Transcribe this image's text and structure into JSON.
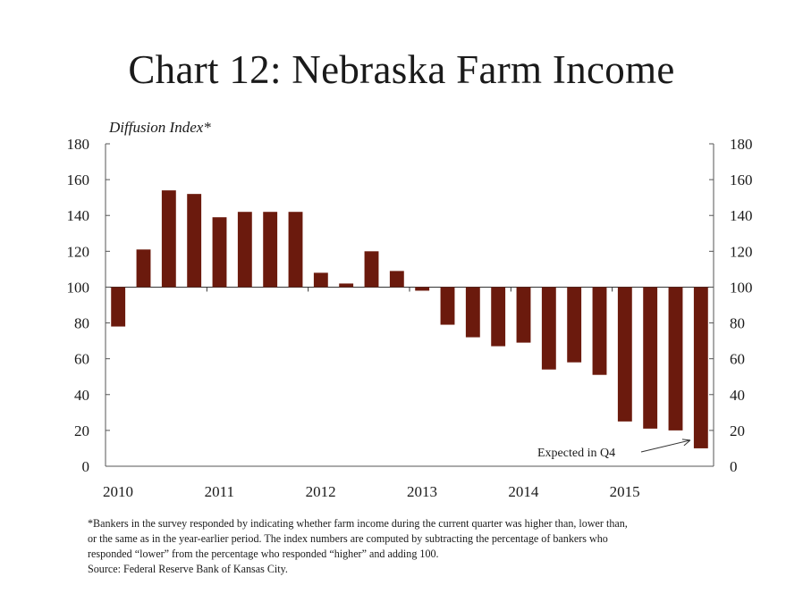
{
  "title": "Chart 12: Nebraska Farm Income",
  "chart_data": {
    "type": "bar",
    "ylabel": "Diffusion Index*",
    "ylim": [
      0,
      180
    ],
    "yticks": [
      0,
      20,
      40,
      60,
      80,
      100,
      120,
      140,
      160,
      180
    ],
    "baseline": 100,
    "dual_y_axis": true,
    "x_tick_labels": [
      "2010",
      "2011",
      "2012",
      "2013",
      "2014",
      "2015"
    ],
    "categories": [
      "2010 Q1",
      "2010 Q2",
      "2010 Q3",
      "2010 Q4",
      "2011 Q1",
      "2011 Q2",
      "2011 Q3",
      "2011 Q4",
      "2012 Q1",
      "2012 Q2",
      "2012 Q3",
      "2012 Q4",
      "2013 Q1",
      "2013 Q2",
      "2013 Q3",
      "2013 Q4",
      "2014 Q1",
      "2014 Q2",
      "2014 Q3",
      "2014 Q4",
      "2015 Q1",
      "2015 Q2",
      "2015 Q3",
      "2015 Q4"
    ],
    "values": [
      78,
      121,
      154,
      152,
      139,
      142,
      142,
      142,
      108,
      102,
      120,
      109,
      98,
      79,
      72,
      67,
      69,
      54,
      58,
      51,
      25,
      21,
      20,
      10
    ],
    "bar_color": "#6b1a0d",
    "annotation": {
      "text": "Expected in Q4",
      "category_index": 23
    }
  },
  "footnote": {
    "lines": [
      "*Bankers in the survey responded by indicating whether farm income during the current quarter was higher than, lower than,",
      "or the same as in the year-earlier period. The index numbers are computed by subtracting the percentage of bankers who",
      "responded “lower” from the percentage who responded “higher” and adding 100."
    ],
    "source": "Source: Federal Reserve Bank of Kansas City."
  }
}
